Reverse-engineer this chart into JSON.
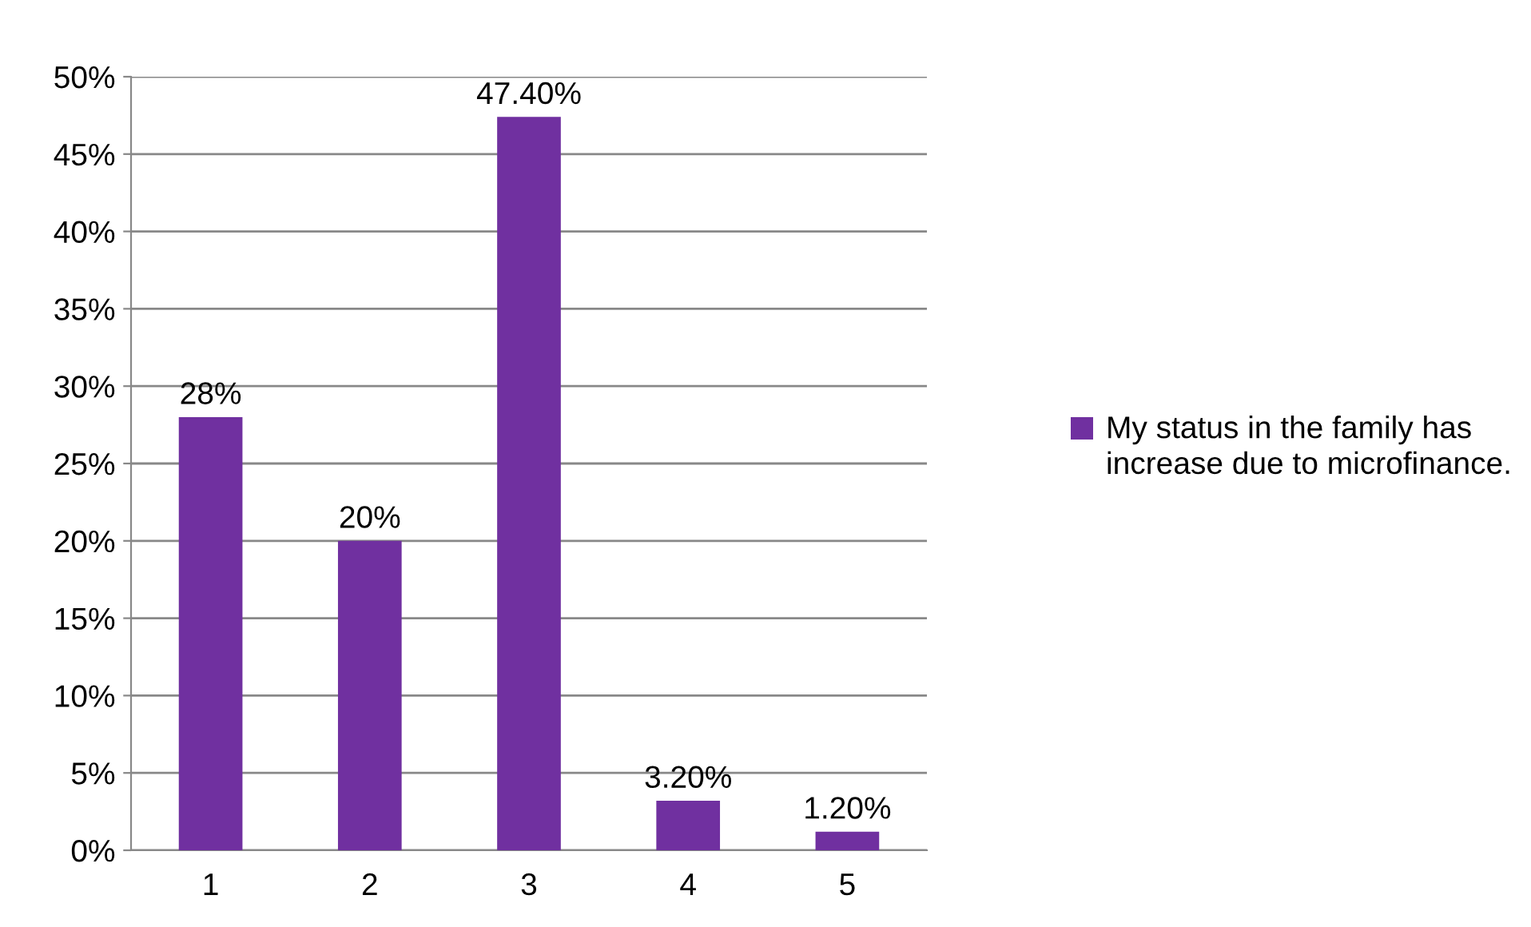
{
  "chart_data": {
    "type": "bar",
    "categories": [
      "1",
      "2",
      "3",
      "4",
      "5"
    ],
    "series": [
      {
        "name": "My status in the family has increase due to microfinance.",
        "color": "#7030a0",
        "values": [
          28,
          20,
          47.4,
          3.2,
          1.2
        ],
        "value_labels": [
          "28%",
          "20%",
          "47.40%",
          "3.20%",
          "1.20%"
        ]
      }
    ],
    "ylim": [
      0,
      50
    ],
    "yticks": [
      {
        "value": 0,
        "label": "0%"
      },
      {
        "value": 5,
        "label": "5%"
      },
      {
        "value": 10,
        "label": "10%"
      },
      {
        "value": 15,
        "label": "15%"
      },
      {
        "value": 20,
        "label": "20%"
      },
      {
        "value": 25,
        "label": "25%"
      },
      {
        "value": 30,
        "label": "30%"
      },
      {
        "value": 35,
        "label": "35%"
      },
      {
        "value": 40,
        "label": "40%"
      },
      {
        "value": 45,
        "label": "45%"
      },
      {
        "value": 50,
        "label": "50%"
      }
    ],
    "grid": "y",
    "legend": "right"
  }
}
